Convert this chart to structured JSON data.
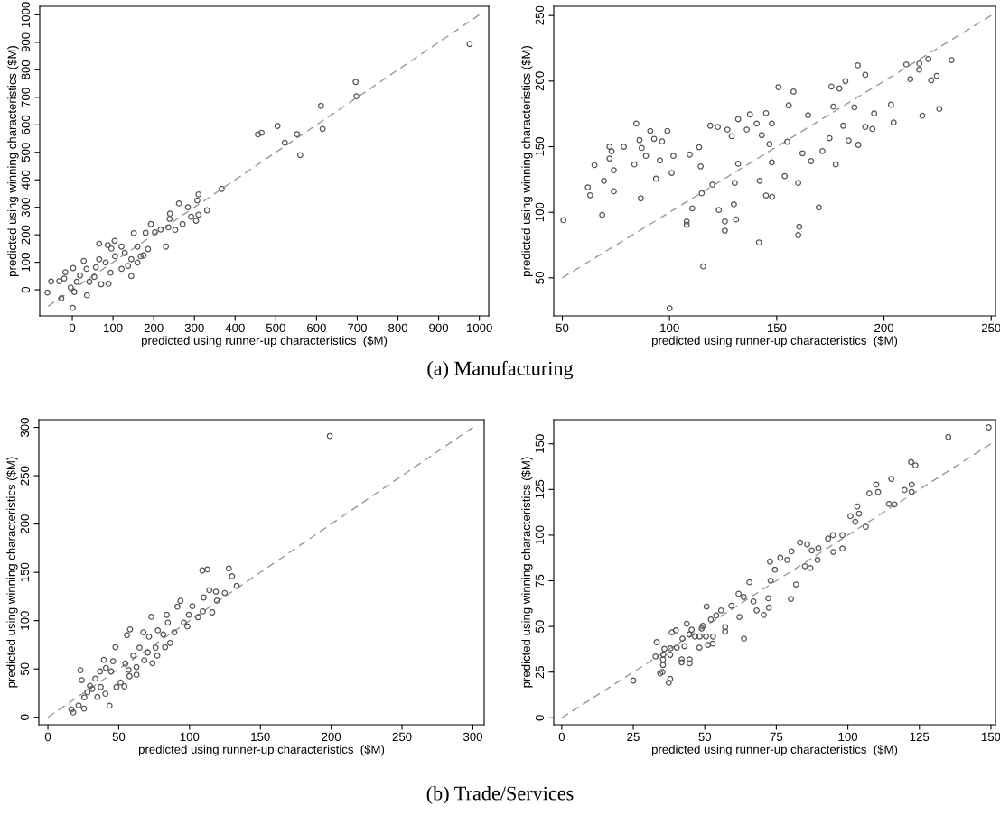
{
  "chart_data": [
    {
      "type": "scatter",
      "xlabel": "predicted using runner-up characteristics  ($M)",
      "ylabel": "predicted using winning characteristics ($M)",
      "xlim": [
        -80,
        1023
      ],
      "ylim": [
        -95,
        1031
      ],
      "xticks": [
        0,
        100,
        200,
        300,
        400,
        500,
        600,
        700,
        800,
        900,
        1000
      ],
      "yticks": [
        0,
        100,
        200,
        300,
        400,
        500,
        600,
        700,
        800,
        900,
        1000
      ],
      "annotations": [
        "(a) Manufacturing"
      ],
      "series": [
        {
          "color": "#555555",
          "marker": "circle",
          "x": [
            976,
            696,
            698,
            611,
            615,
            504,
            552,
            522,
            560,
            456,
            465,
            367,
            310,
            307,
            262,
            284,
            331,
            310,
            304,
            292,
            240,
            239,
            236,
            271,
            253,
            230,
            217,
            203,
            193,
            180,
            151,
            186,
            175,
            145,
            104,
            66,
            87,
            96,
            28,
            2,
            -17,
            -52,
            -61,
            -27,
            1,
            36,
            5,
            -4,
            71,
            89,
            54,
            58,
            94,
            121,
            137,
            82,
            105,
            129,
            160,
            168,
            121,
            19,
            11,
            42,
            -20,
            -32,
            35,
            66,
            160,
            145
          ],
          "values": [
            894,
            756,
            704,
            669,
            585,
            596,
            566,
            535,
            490,
            565,
            571,
            367,
            347,
            325,
            314,
            300,
            289,
            273,
            251,
            266,
            277,
            258,
            227,
            239,
            218,
            157,
            219,
            209,
            239,
            207,
            206,
            148,
            125,
            50,
            178,
            167,
            162,
            150,
            105,
            79,
            64,
            30,
            -10,
            -31,
            -66,
            -20,
            -8,
            8,
            20,
            22,
            47,
            82,
            62,
            76,
            87,
            99,
            122,
            134,
            157,
            122,
            157,
            52,
            29,
            29,
            41,
            31,
            76,
            111,
            99,
            111
          ]
        },
        {
          "type": "line",
          "color": "#999999",
          "marker": "none",
          "line_style": "dashed",
          "x": [
            -60,
            1000
          ],
          "values": [
            -60,
            1000
          ]
        }
      ]
    },
    {
      "type": "scatter",
      "xlabel": "predicted using runner-up characteristics  ($M)",
      "ylabel": "predicted using winning characteristics ($M)",
      "xlim": [
        46,
        252
      ],
      "ylim": [
        21,
        257
      ],
      "xticks": [
        50,
        100,
        150,
        200,
        250
      ],
      "yticks": [
        50,
        100,
        150,
        200,
        250
      ],
      "series": [
        {
          "color": "#555555",
          "marker": "circle",
          "x": [
            50.5,
            61.9,
            63,
            65,
            68.6,
            69.4,
            72,
            72,
            73,
            74,
            74,
            78.7,
            83.6,
            84.5,
            86.6,
            86,
            87,
            89,
            91,
            92.8,
            93.7,
            95.5,
            96.5,
            99,
            100,
            101,
            101.8,
            108,
            108,
            109.4,
            110.6,
            113.8,
            114.5,
            115.7,
            115,
            119,
            120,
            123,
            122.5,
            125.8,
            125.8,
            127,
            129,
            131,
            130.4,
            130,
            132,
            132,
            137.5,
            136,
            140.6,
            141.7,
            142,
            143,
            145,
            145,
            146.6,
            147.7,
            147.8,
            147.7,
            150.8,
            153.7,
            154.9,
            155.6,
            157.8,
            160,
            160,
            160.5,
            162,
            164.6,
            166,
            169.6,
            171.3,
            175.5,
            176.4,
            174.6,
            177.5,
            179.2,
            182,
            181,
            183.5,
            186.2,
            187.8,
            188,
            191.3,
            191.3,
            195.4,
            194.6,
            203.3,
            204.5,
            210.4,
            212.3,
            216.4,
            216.5,
            220.7,
            222,
            224.6,
            217.9,
            225.8,
            231.5
          ],
          "values": [
            94,
            119,
            113,
            136,
            98,
            124,
            150,
            141,
            146.5,
            132,
            116,
            150,
            136.5,
            167.7,
            110.6,
            155,
            149,
            143,
            162,
            156,
            125.6,
            139.5,
            154,
            162,
            26.8,
            130,
            143,
            93,
            90.5,
            144,
            103,
            149.6,
            135,
            58.7,
            114.5,
            166,
            121,
            101.7,
            165,
            93,
            86,
            163,
            158,
            94.5,
            122.4,
            106,
            171,
            137,
            174.6,
            163,
            167.7,
            77,
            124,
            158.8,
            175.6,
            112.8,
            152,
            167.7,
            111.8,
            138,
            195.4,
            127.6,
            153.8,
            181.5,
            192,
            122.4,
            82.6,
            89,
            145,
            174,
            139,
            103.6,
            146.7,
            195.9,
            180.5,
            156.5,
            136.5,
            194.4,
            200,
            166,
            154.8,
            180,
            212,
            151.4,
            204.8,
            165,
            175.3,
            163.5,
            182,
            168.4,
            212.7,
            201.5,
            208.7,
            213.4,
            216.9,
            200.6,
            204,
            173.6,
            178.8,
            216
          ]
        },
        {
          "type": "line",
          "color": "#999999",
          "marker": "none",
          "line_style": "dashed",
          "x": [
            50,
            250
          ],
          "values": [
            50,
            250
          ]
        }
      ]
    },
    {
      "type": "scatter",
      "xlabel": "predicted using runner-up characteristics  ($M)",
      "ylabel": "predicted using winning characteristics ($M)",
      "xlim": [
        -6.4,
        308
      ],
      "ylim": [
        -7.7,
        308
      ],
      "xticks": [
        0,
        50,
        100,
        150,
        200,
        250,
        300
      ],
      "yticks": [
        0,
        50,
        100,
        150,
        200,
        250,
        300
      ],
      "annotations": [
        "(b) Trade/Services"
      ],
      "series": [
        {
          "color": "#555555",
          "marker": "circle",
          "x": [
            199,
            127.7,
            130,
            133.3,
            112.6,
            109,
            114,
            110,
            118.6,
            124.8,
            119.3,
            116,
            102,
            99.5,
            93.6,
            91.4,
            106,
            98.5,
            83.9,
            84.7,
            73,
            58,
            55.8,
            67.4,
            71.4,
            77.6,
            81.4,
            86.3,
            82.7,
            73.8,
            77.2,
            70.5,
            64.7,
            62.5,
            57.6,
            54,
            48.4,
            47.7,
            46,
            39.5,
            41,
            43.5,
            23,
            23.9,
            25.7,
            25.5,
            21.7,
            16.6,
            17.9,
            33.5,
            37.3,
            35,
            40.6,
            51.3,
            57,
            62.5,
            68,
            76,
            89.2,
            96,
            109.3,
            29.7,
            31.3,
            27.9,
            36.8,
            44.6,
            54.7,
            60.3
          ],
          "values": [
            291,
            154,
            146,
            136,
            153,
            152,
            131.6,
            124,
            130,
            128.6,
            120.8,
            108.6,
            115,
            106,
            120.5,
            114.5,
            103.7,
            94,
            106,
            98,
            104,
            91,
            85,
            88,
            83.4,
            90,
            85.7,
            77,
            72.6,
            56,
            63.8,
            67,
            72,
            44,
            42.5,
            32,
            31.3,
            72.6,
            58,
            59.5,
            51,
            12,
            48.7,
            38.5,
            20.6,
            9,
            12.3,
            8,
            5,
            40,
            31.3,
            21,
            24.4,
            36,
            49,
            52,
            59,
            72,
            88,
            98,
            109.6,
            32.6,
            29.4,
            26,
            47.4,
            47.4,
            55.6,
            63.8
          ]
        },
        {
          "type": "line",
          "color": "#999999",
          "marker": "none",
          "line_style": "dashed",
          "x": [
            0,
            300
          ],
          "values": [
            0,
            300
          ]
        }
      ]
    },
    {
      "type": "scatter",
      "xlabel": "predicted using runner-up characteristics  ($M)",
      "ylabel": "predicted using winning characteristics ($M)",
      "xlim": [
        -2.8,
        151.6
      ],
      "ylim": [
        -3.8,
        163.2
      ],
      "xticks": [
        0,
        25,
        50,
        75,
        100,
        125,
        150
      ],
      "yticks": [
        0,
        25,
        50,
        75,
        100,
        125,
        150
      ],
      "series": [
        {
          "color": "#555555",
          "marker": "circle",
          "x": [
            149.2,
            135.1,
            122.1,
            123.6,
            115.2,
            109.9,
            107.5,
            110.6,
            119.8,
            122.3,
            122.3,
            114.4,
            116.3,
            103.3,
            103.9,
            100.9,
            102.6,
            106.3,
            98.1,
            94.8,
            98.1,
            94.9,
            93.1,
            89.7,
            89.4,
            85.8,
            83.3,
            87.4,
            85,
            86.9,
            81.9,
            80.1,
            80.3,
            78.8,
            76.4,
            72.8,
            74.5,
            73,
            72.2,
            72.4,
            70.6,
            68.1,
            67,
            65.6,
            63.6,
            61.8,
            63.7,
            62.1,
            59.3,
            57.1,
            57.1,
            55.7,
            54,
            50.6,
            52.1,
            52.9,
            52.8,
            51.1,
            50.4,
            48.9,
            49.3,
            48.2,
            48.1,
            46.6,
            45.4,
            44.6,
            43.7,
            44.7,
            44.7,
            41.9,
            41.9,
            42.9,
            42.2,
            40.2,
            39.9,
            38.5,
            37.9,
            38,
            37.9,
            37.4,
            35.4,
            35.2,
            34.4,
            35.4,
            35.9,
            35.5,
            33.2,
            32.8,
            25
          ],
          "values": [
            159,
            153.7,
            140,
            138.2,
            130.8,
            127.7,
            122.9,
            123.6,
            124.7,
            127.7,
            123.6,
            117.1,
            116.8,
            115.7,
            111.8,
            110.4,
            107.3,
            104.6,
            100,
            100,
            92.7,
            90.8,
            98.1,
            92.9,
            86.4,
            95,
            95.9,
            91.6,
            83,
            82,
            73,
            65.1,
            91.1,
            86.4,
            87.6,
            85.5,
            81.1,
            75.1,
            65.4,
            60.3,
            56.3,
            58.8,
            63.7,
            74.2,
            66.1,
            67.9,
            43.3,
            55.2,
            61.4,
            47.2,
            49.6,
            58.8,
            56,
            60.9,
            53.8,
            44.5,
            40.6,
            39.9,
            44.5,
            48.9,
            50.3,
            44.5,
            38.4,
            44.5,
            48.2,
            45.6,
            51.5,
            32,
            29.9,
            32,
            30.4,
            39.2,
            43.3,
            38.4,
            47.9,
            46.8,
            34.5,
            38,
            21.3,
            19.2,
            28.9,
            25,
            24.3,
            31.9,
            37.7,
            34.7,
            41.4,
            33.6,
            20.4
          ]
        },
        {
          "type": "line",
          "color": "#999999",
          "marker": "none",
          "line_style": "dashed",
          "x": [
            0,
            150
          ],
          "values": [
            0,
            150
          ]
        }
      ]
    }
  ]
}
